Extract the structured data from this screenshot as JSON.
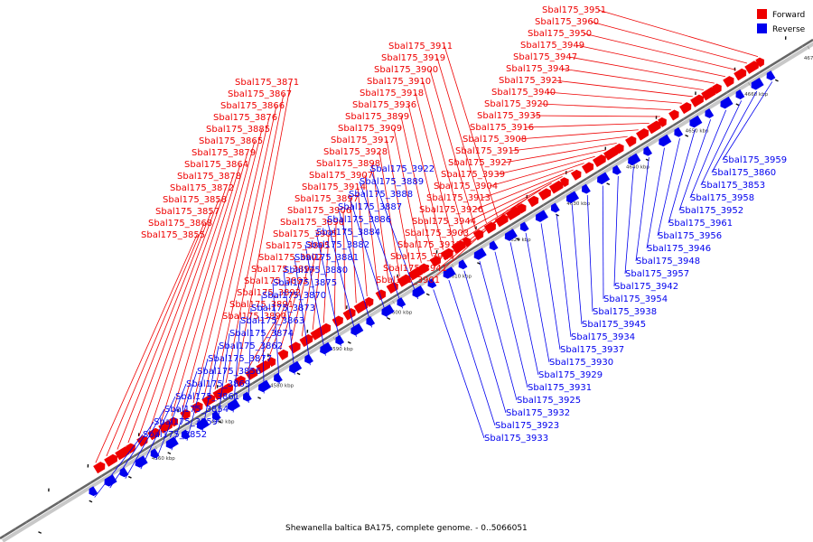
{
  "caption": "Shewanella baltica BA175, complete genome. - 0..5066051",
  "legend": {
    "forward_label": "Forward",
    "reverse_label": "Reverse",
    "forward_color": "#ee0000",
    "reverse_color": "#0000ee"
  },
  "leader_colors": {
    "forward": "#ee0000",
    "reverse": "#0000ee"
  },
  "axis_ticks": [
    "4560 kbp",
    "4570 kbp",
    "4580 kbp",
    "4590 kbp",
    "4600 kbp",
    "4610 kbp",
    "4620 kbp",
    "4630 kbp",
    "4640 kbp",
    "4650 kbp",
    "4660 kbp",
    "4670 kbp",
    "4680 kbp"
  ],
  "forward_genes": [
    "Sbal175_3951",
    "Sbal175_3960",
    "Sbal175_3950",
    "Sbal175_3949",
    "Sbal175_3947",
    "Sbal175_3943",
    "Sbal175_3921",
    "Sbal175_3940",
    "Sbal175_3920",
    "Sbal175_3935",
    "Sbal175_3916",
    "Sbal175_3908",
    "Sbal175_3915",
    "Sbal175_3927",
    "Sbal175_3939",
    "Sbal175_3904",
    "Sbal175_3913",
    "Sbal175_3926",
    "Sbal175_3944",
    "Sbal175_3903",
    "Sbal175_3912",
    "Sbal175_3924",
    "Sbal175_3941",
    "Sbal175_3901",
    "Sbal175_3911",
    "Sbal175_3919",
    "Sbal175_3900",
    "Sbal175_3910",
    "Sbal175_3918",
    "Sbal175_3936",
    "Sbal175_3899",
    "Sbal175_3909",
    "Sbal175_3917",
    "Sbal175_3928",
    "Sbal175_3898",
    "Sbal175_3907",
    "Sbal175_3914",
    "Sbal175_3897",
    "Sbal175_3906",
    "Sbal175_3896",
    "Sbal175_3905",
    "Sbal175_3895",
    "Sbal175_3902",
    "Sbal175_3894",
    "Sbal175_3893",
    "Sbal175_3892",
    "Sbal175_3891",
    "Sbal175_3890",
    "Sbal175_3871",
    "Sbal175_3867",
    "Sbal175_3866",
    "Sbal175_3876",
    "Sbal175_3885",
    "Sbal175_3865",
    "Sbal175_3879",
    "Sbal175_3864",
    "Sbal175_3878",
    "Sbal175_3872",
    "Sbal175_3858",
    "Sbal175_3857",
    "Sbal175_3868",
    "Sbal175_3855"
  ],
  "reverse_genes": [
    "Sbal175_3959",
    "Sbal175_3860",
    "Sbal175_3853",
    "Sbal175_3958",
    "Sbal175_3952",
    "Sbal175_3961",
    "Sbal175_3956",
    "Sbal175_3946",
    "Sbal175_3948",
    "Sbal175_3957",
    "Sbal175_3942",
    "Sbal175_3954",
    "Sbal175_3938",
    "Sbal175_3945",
    "Sbal175_3934",
    "Sbal175_3937",
    "Sbal175_3930",
    "Sbal175_3929",
    "Sbal175_3931",
    "Sbal175_3925",
    "Sbal175_3932",
    "Sbal175_3923",
    "Sbal175_3933",
    "Sbal175_3922",
    "Sbal175_3889",
    "Sbal175_3888",
    "Sbal175_3887",
    "Sbal175_3886",
    "Sbal175_3884",
    "Sbal175_3882",
    "Sbal175_3881",
    "Sbal175_3880",
    "Sbal175_3875",
    "Sbal175_3870",
    "Sbal175_3873",
    "Sbal175_3863",
    "Sbal175_3874",
    "Sbal175_3862",
    "Sbal175_3877",
    "Sbal175_3856",
    "Sbal175_3869",
    "Sbal175_3861",
    "Sbal175_3854",
    "Sbal175_3859",
    "Sbal175_3852"
  ]
}
